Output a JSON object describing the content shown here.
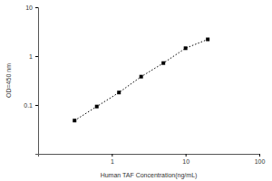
{
  "chart_data": {
    "type": "line",
    "x_label": "Human TAF Concentration(ng/mL)",
    "y_label": "OD=450 nm",
    "x": [
      0.3125,
      0.625,
      1.25,
      2.5,
      5,
      10,
      20
    ],
    "values": [
      0.048,
      0.093,
      0.18,
      0.38,
      0.72,
      1.45,
      2.2
    ],
    "color": "#000000",
    "marker": "square",
    "line_style": "dotted",
    "log": true,
    "xlim": [
      0.1,
      100
    ],
    "xticks": [
      1,
      10,
      100
    ],
    "ylim": [
      0.01,
      10
    ],
    "yticks": [
      0.1,
      1,
      10
    ]
  }
}
